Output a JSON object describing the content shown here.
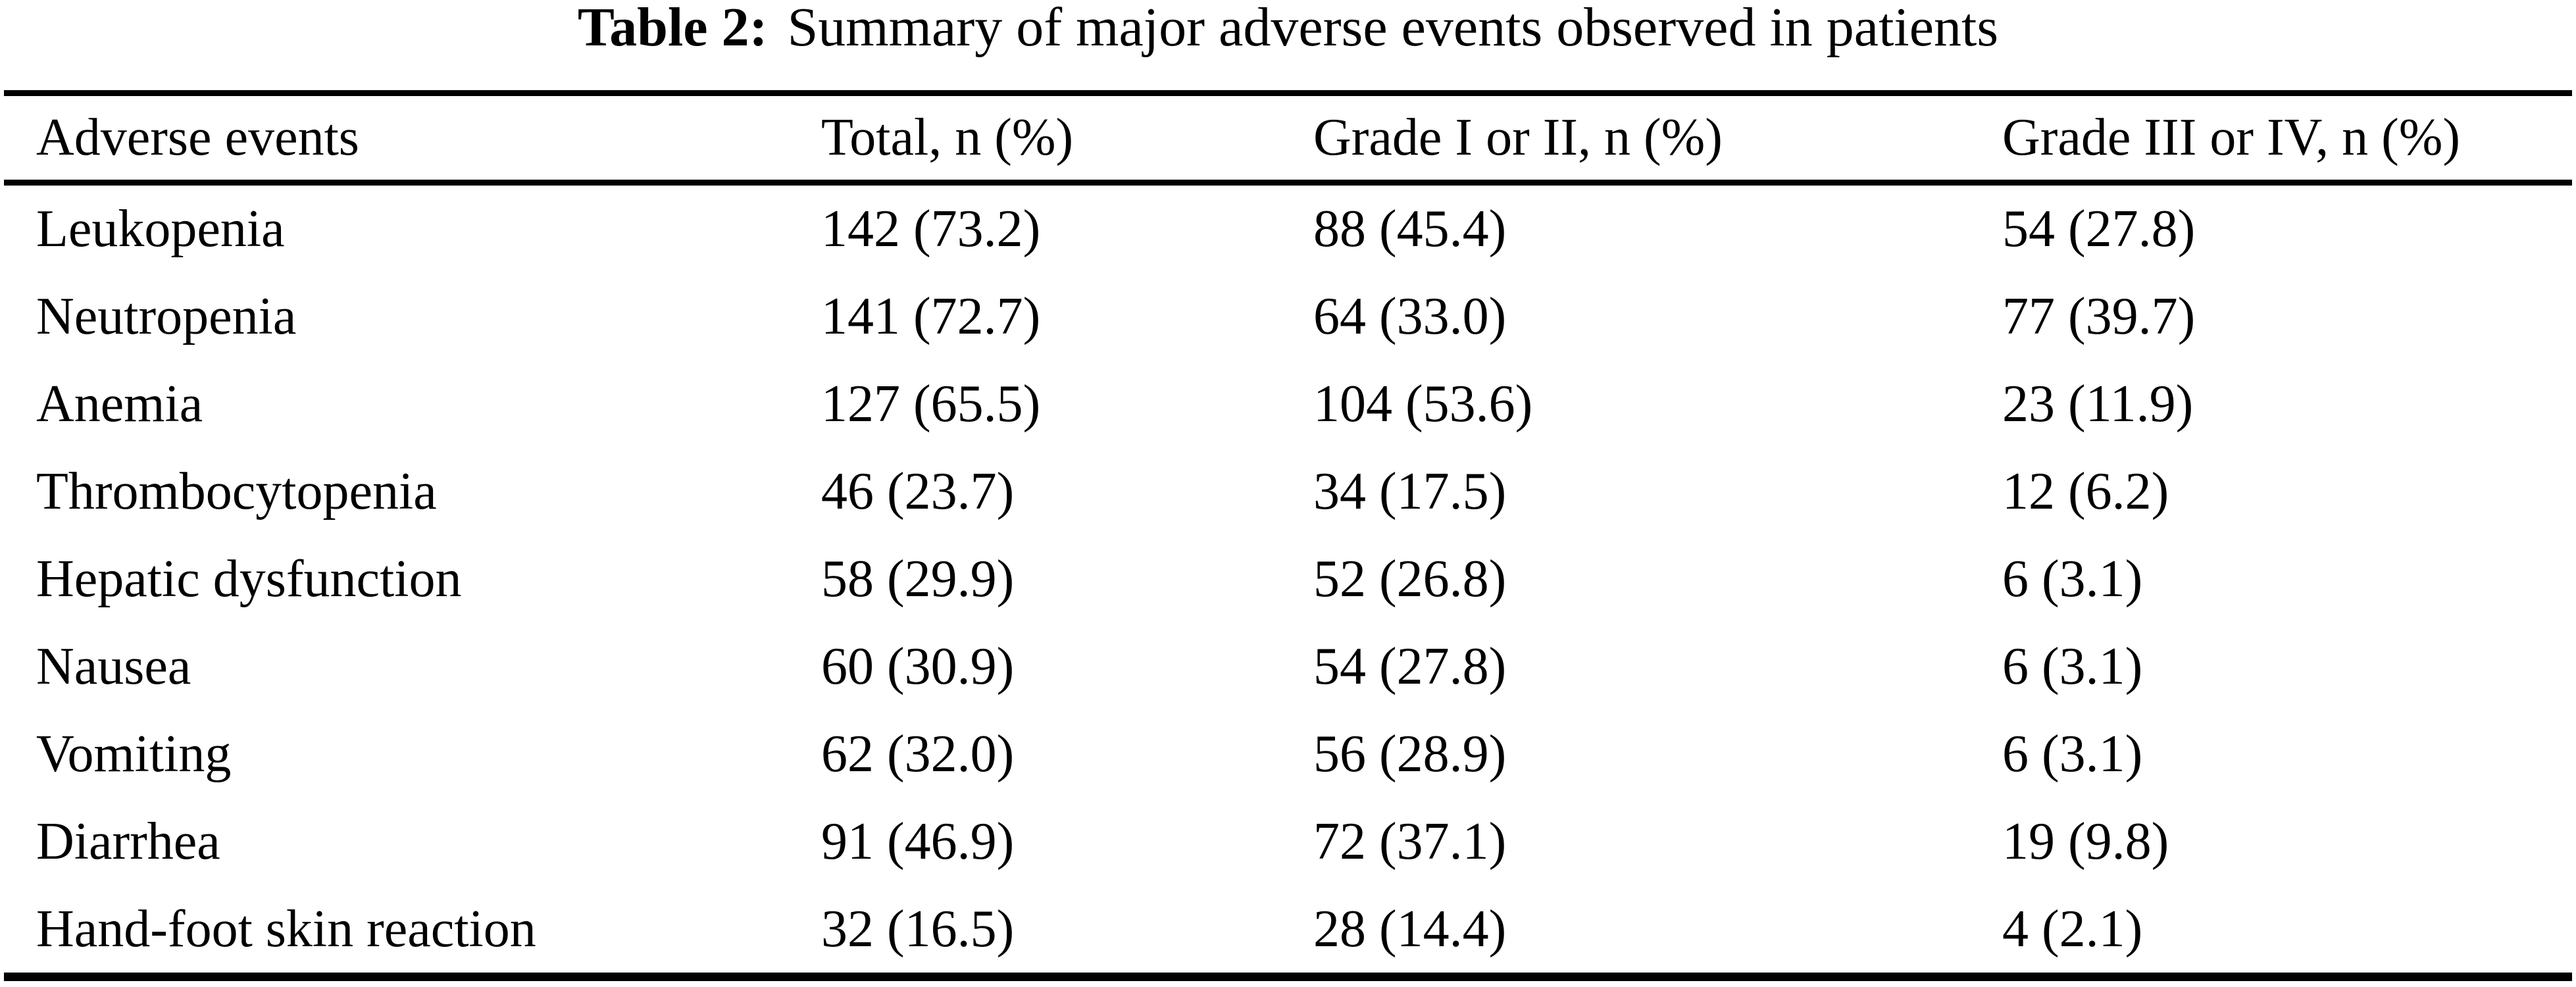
{
  "table": {
    "title_prefix": "Table 2:",
    "title_text": "Summary of major adverse events observed in patients",
    "columns": [
      "Adverse events",
      "Total, n (%)",
      "Grade I or II, n (%)",
      "Grade III or IV, n (%)"
    ],
    "rows": [
      {
        "event": "Leukopenia",
        "total": "142 (73.2)",
        "grade_1_2": "88 (45.4)",
        "grade_3_4": "54 (27.8)"
      },
      {
        "event": "Neutropenia",
        "total": "141 (72.7)",
        "grade_1_2": "64 (33.0)",
        "grade_3_4": "77 (39.7)"
      },
      {
        "event": "Anemia",
        "total": "127 (65.5)",
        "grade_1_2": "104 (53.6)",
        "grade_3_4": "23 (11.9)"
      },
      {
        "event": "Thrombocytopenia",
        "total": "46 (23.7)",
        "grade_1_2": "34 (17.5)",
        "grade_3_4": "12 (6.2)"
      },
      {
        "event": "Hepatic dysfunction",
        "total": "58 (29.9)",
        "grade_1_2": "52 (26.8)",
        "grade_3_4": "6 (3.1)"
      },
      {
        "event": "Nausea",
        "total": "60 (30.9)",
        "grade_1_2": "54 (27.8)",
        "grade_3_4": "6 (3.1)"
      },
      {
        "event": "Vomiting",
        "total": "62 (32.0)",
        "grade_1_2": "56 (28.9)",
        "grade_3_4": "6 (3.1)"
      },
      {
        "event": "Diarrhea",
        "total": "91 (46.9)",
        "grade_1_2": "72 (37.1)",
        "grade_3_4": "19 (9.8)"
      },
      {
        "event": "Hand-foot skin reaction",
        "total": "32 (16.5)",
        "grade_1_2": "28 (14.4)",
        "grade_3_4": "4 (2.1)"
      }
    ],
    "text_color": "#000000",
    "background_color": "#ffffff"
  },
  "chart_data": {
    "type": "table",
    "title": "Table 2: Summary of major adverse events observed in patients",
    "columns": [
      "Adverse events",
      "Total, n (%)",
      "Grade I or II, n (%)",
      "Grade III or IV, n (%)"
    ],
    "rows": [
      [
        "Leukopenia",
        "142 (73.2)",
        "88 (45.4)",
        "54 (27.8)"
      ],
      [
        "Neutropenia",
        "141 (72.7)",
        "64 (33.0)",
        "77 (39.7)"
      ],
      [
        "Anemia",
        "127 (65.5)",
        "104 (53.6)",
        "23 (11.9)"
      ],
      [
        "Thrombocytopenia",
        "46 (23.7)",
        "34 (17.5)",
        "12 (6.2)"
      ],
      [
        "Hepatic dysfunction",
        "58 (29.9)",
        "52 (26.8)",
        "6 (3.1)"
      ],
      [
        "Nausea",
        "60 (30.9)",
        "54 (27.8)",
        "6 (3.1)"
      ],
      [
        "Vomiting",
        "62 (32.0)",
        "56 (28.9)",
        "6 (3.1)"
      ],
      [
        "Diarrhea",
        "91 (46.9)",
        "72 (37.1)",
        "19 (9.8)"
      ],
      [
        "Hand-foot skin reaction",
        "32 (16.5)",
        "28 (14.4)",
        "4 (2.1)"
      ]
    ]
  }
}
